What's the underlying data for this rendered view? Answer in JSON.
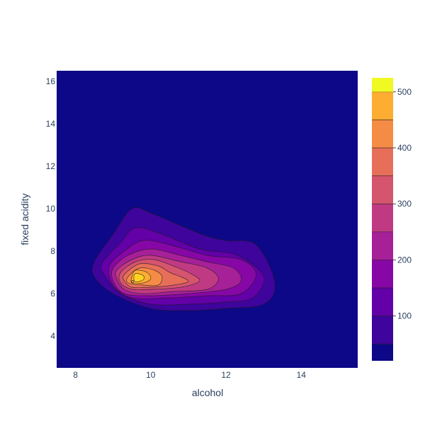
{
  "chart_data": {
    "type": "contour",
    "subtype": "density-contour (filled)",
    "xlabel": "alcohol",
    "ylabel": "fixed acidity",
    "x_range": [
      7.5,
      15.5
    ],
    "y_range": [
      2.5,
      16.5
    ],
    "x_ticks": [
      8,
      10,
      12,
      14
    ],
    "y_ticks": [
      4,
      6,
      8,
      10,
      12,
      14,
      16
    ],
    "grid": false,
    "colorscale": "Plasma",
    "colorbar": {
      "range": [
        20,
        525
      ],
      "ticks": [
        100,
        200,
        300,
        400,
        500
      ],
      "levels": [
        20,
        50,
        100,
        150,
        200,
        250,
        300,
        350,
        400,
        450,
        500,
        525
      ],
      "colors": [
        "#0d0887",
        "#3e049c",
        "#6300a7",
        "#8707a6",
        "#a62098",
        "#c03a83",
        "#d5546e",
        "#e76f5a",
        "#f58c46",
        "#fdad32",
        "#fcd225",
        "#f0f921"
      ]
    },
    "peak": {
      "x": 9.5,
      "y": 6.6,
      "value": 520
    },
    "contours": [
      {
        "level": 50,
        "points": [
          [
            8.5,
            7.5
          ],
          [
            9.0,
            8.8
          ],
          [
            9.5,
            10.0
          ],
          [
            10.0,
            9.8
          ],
          [
            10.8,
            9.2
          ],
          [
            11.5,
            8.7
          ],
          [
            12.0,
            8.5
          ],
          [
            12.8,
            8.3
          ],
          [
            13.3,
            6.5
          ],
          [
            13.0,
            5.5
          ],
          [
            12.0,
            5.3
          ],
          [
            11.0,
            5.2
          ],
          [
            10.0,
            5.3
          ],
          [
            9.0,
            6.0
          ],
          [
            8.5,
            6.8
          ]
        ]
      },
      {
        "level": 100,
        "points": [
          [
            8.7,
            7.4
          ],
          [
            9.2,
            8.4
          ],
          [
            9.6,
            9.1
          ],
          [
            10.3,
            8.8
          ],
          [
            11.3,
            8.1
          ],
          [
            12.3,
            7.8
          ],
          [
            13.0,
            6.8
          ],
          [
            12.7,
            5.8
          ],
          [
            12.0,
            5.6
          ],
          [
            11.0,
            5.5
          ],
          [
            10.0,
            5.5
          ],
          [
            9.2,
            6.0
          ],
          [
            8.8,
            6.8
          ]
        ]
      },
      {
        "level": 150,
        "points": [
          [
            8.9,
            7.3
          ],
          [
            9.3,
            8.0
          ],
          [
            9.8,
            8.5
          ],
          [
            10.5,
            8.3
          ],
          [
            11.5,
            7.8
          ],
          [
            12.4,
            7.6
          ],
          [
            12.8,
            6.9
          ],
          [
            12.4,
            6.0
          ],
          [
            11.5,
            5.9
          ],
          [
            10.5,
            5.8
          ],
          [
            9.5,
            5.8
          ],
          [
            9.0,
            6.4
          ]
        ]
      },
      {
        "level": 200,
        "points": [
          [
            9.0,
            7.2
          ],
          [
            9.4,
            7.8
          ],
          [
            10.0,
            8.1
          ],
          [
            10.8,
            7.8
          ],
          [
            11.5,
            7.5
          ],
          [
            12.2,
            7.2
          ],
          [
            12.4,
            6.6
          ],
          [
            12.0,
            6.2
          ],
          [
            11.0,
            6.0
          ],
          [
            10.0,
            5.9
          ],
          [
            9.3,
            6.0
          ],
          [
            9.0,
            6.6
          ]
        ]
      },
      {
        "level": 250,
        "points": [
          [
            9.1,
            7.1
          ],
          [
            9.5,
            7.6
          ],
          [
            10.0,
            7.8
          ],
          [
            10.8,
            7.5
          ],
          [
            11.5,
            7.2
          ],
          [
            11.8,
            6.7
          ],
          [
            11.5,
            6.2
          ],
          [
            10.6,
            6.1
          ],
          [
            9.8,
            6.0
          ],
          [
            9.3,
            6.2
          ],
          [
            9.1,
            6.7
          ]
        ]
      },
      {
        "level": 300,
        "points": [
          [
            9.2,
            7.0
          ],
          [
            9.6,
            7.5
          ],
          [
            10.1,
            7.6
          ],
          [
            10.6,
            7.3
          ],
          [
            11.0,
            7.0
          ],
          [
            11.3,
            6.6
          ],
          [
            10.8,
            6.3
          ],
          [
            10.0,
            6.2
          ],
          [
            9.5,
            6.2
          ],
          [
            9.2,
            6.5
          ]
        ]
      },
      {
        "level": 350,
        "points": [
          [
            9.3,
            6.9
          ],
          [
            9.7,
            7.4
          ],
          [
            10.2,
            7.3
          ],
          [
            10.5,
            7.0
          ],
          [
            11.0,
            6.6
          ],
          [
            10.6,
            6.4
          ],
          [
            10.0,
            6.3
          ],
          [
            9.5,
            6.3
          ],
          [
            9.3,
            6.6
          ]
        ]
      },
      {
        "level": 400,
        "points": [
          [
            9.4,
            6.8
          ],
          [
            9.7,
            7.2
          ],
          [
            10.1,
            7.1
          ],
          [
            10.3,
            6.8
          ],
          [
            10.2,
            6.4
          ],
          [
            9.8,
            6.4
          ],
          [
            9.4,
            6.5
          ]
        ]
      },
      {
        "level": 450,
        "points": [
          [
            9.5,
            6.8
          ],
          [
            9.6,
            7.1
          ],
          [
            9.9,
            7.0
          ],
          [
            10.0,
            6.7
          ],
          [
            9.8,
            6.5
          ],
          [
            9.5,
            6.5
          ]
        ]
      },
      {
        "level": 500,
        "points": [
          [
            9.55,
            6.75
          ],
          [
            9.6,
            6.95
          ],
          [
            9.8,
            6.85
          ],
          [
            9.8,
            6.65
          ],
          [
            9.6,
            6.55
          ]
        ]
      }
    ]
  }
}
